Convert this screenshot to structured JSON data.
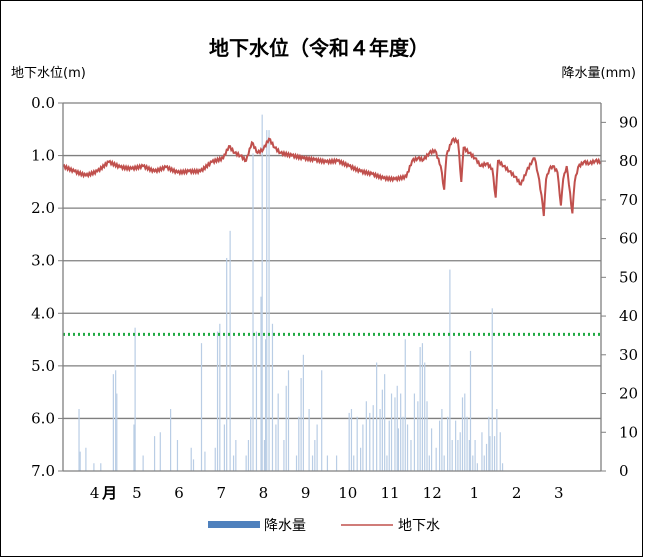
{
  "chart_data": {
    "type": "line+bar",
    "title": "地下水位（令和４年度）",
    "y_left_label": "地下水位(m)",
    "y_right_label": "降水量(mm)",
    "y_left_ticks": [
      "0.0",
      "1.0",
      "2.0",
      "3.0",
      "4.0",
      "5.0",
      "6.0",
      "7.0"
    ],
    "y_left_range": [
      0,
      7
    ],
    "y_left_inverted": true,
    "y_right_ticks": [
      "0",
      "10",
      "20",
      "30",
      "40",
      "50",
      "60",
      "70",
      "80",
      "90"
    ],
    "y_right_range": [
      0,
      95
    ],
    "x_ticks": [
      "4",
      "5",
      "6",
      "7",
      "8",
      "9",
      "10",
      "11",
      "12",
      "1",
      "2",
      "3"
    ],
    "x_month_suffix": "月",
    "reference_line_level": 4.4,
    "reference_line_color": "#22aa44",
    "series": [
      {
        "name": "降水量",
        "type": "bar",
        "color": "#4f81bd",
        "bar_color": "#b9cde5",
        "unit": "mm",
        "day_values": [
          [
            14,
            16
          ],
          [
            15,
            5
          ],
          [
            20,
            6
          ],
          [
            27,
            2
          ],
          [
            33,
            2
          ],
          [
            44,
            25
          ],
          [
            46,
            26
          ],
          [
            47,
            20
          ],
          [
            62,
            12
          ],
          [
            63,
            37
          ],
          [
            70,
            4
          ],
          [
            80,
            9
          ],
          [
            85,
            10
          ],
          [
            94,
            16
          ],
          [
            100,
            8
          ],
          [
            112,
            6
          ],
          [
            114,
            3
          ],
          [
            121,
            33
          ],
          [
            124,
            5
          ],
          [
            133,
            6
          ],
          [
            135,
            36
          ],
          [
            137,
            38
          ],
          [
            141,
            12
          ],
          [
            143,
            55
          ],
          [
            146,
            62
          ],
          [
            149,
            4
          ],
          [
            151,
            8
          ],
          [
            160,
            4
          ],
          [
            162,
            8
          ],
          [
            164,
            14
          ],
          [
            166,
            82
          ],
          [
            169,
            36
          ],
          [
            173,
            45
          ],
          [
            174,
            92
          ],
          [
            176,
            8
          ],
          [
            177,
            34
          ],
          [
            178,
            88
          ],
          [
            180,
            88
          ],
          [
            183,
            38
          ],
          [
            186,
            12
          ],
          [
            188,
            20
          ],
          [
            193,
            8
          ],
          [
            195,
            22
          ],
          [
            197,
            26
          ],
          [
            204,
            4
          ],
          [
            206,
            14
          ],
          [
            208,
            24
          ],
          [
            210,
            30
          ],
          [
            215,
            16
          ],
          [
            218,
            4
          ],
          [
            220,
            8
          ],
          [
            222,
            12
          ],
          [
            226,
            26
          ],
          [
            231,
            4
          ],
          [
            239,
            4
          ],
          [
            250,
            15
          ],
          [
            252,
            16
          ],
          [
            254,
            4
          ],
          [
            257,
            14
          ],
          [
            260,
            6
          ],
          [
            262,
            12
          ],
          [
            265,
            18
          ],
          [
            268,
            15
          ],
          [
            271,
            17
          ],
          [
            274,
            28
          ],
          [
            277,
            16
          ],
          [
            279,
            21
          ],
          [
            281,
            25
          ],
          [
            283,
            4
          ],
          [
            285,
            13
          ],
          [
            287,
            20
          ],
          [
            290,
            19
          ],
          [
            292,
            22
          ],
          [
            293,
            11
          ],
          [
            295,
            20
          ],
          [
            297,
            14
          ],
          [
            299,
            34
          ],
          [
            301,
            12
          ],
          [
            304,
            8
          ],
          [
            307,
            20
          ],
          [
            310,
            18
          ],
          [
            312,
            32
          ],
          [
            314,
            33
          ],
          [
            316,
            28
          ],
          [
            318,
            18
          ],
          [
            320,
            4
          ],
          [
            322,
            11
          ],
          [
            326,
            6
          ],
          [
            329,
            13
          ],
          [
            331,
            16
          ],
          [
            333,
            4
          ],
          [
            336,
            14
          ],
          [
            338,
            52
          ],
          [
            340,
            8
          ],
          [
            343,
            13
          ],
          [
            345,
            8
          ],
          [
            347,
            10
          ],
          [
            349,
            19
          ],
          [
            351,
            20
          ],
          [
            353,
            14
          ],
          [
            355,
            8
          ],
          [
            356,
            31
          ],
          [
            358,
            4
          ],
          [
            360,
            8
          ],
          [
            362,
            2
          ],
          [
            366,
            10
          ],
          [
            368,
            4
          ],
          [
            370,
            7
          ],
          [
            372,
            14
          ],
          [
            373,
            9
          ],
          [
            375,
            42
          ],
          [
            377,
            9
          ],
          [
            379,
            16
          ],
          [
            382,
            10
          ],
          [
            384,
            2
          ]
        ]
      },
      {
        "name": "地下水",
        "type": "line",
        "color": "#c0504d",
        "unit": "m",
        "day_values": [
          [
            0,
            1.2
          ],
          [
            10,
            1.3
          ],
          [
            20,
            1.38
          ],
          [
            30,
            1.3
          ],
          [
            40,
            1.12
          ],
          [
            50,
            1.22
          ],
          [
            60,
            1.25
          ],
          [
            70,
            1.2
          ],
          [
            80,
            1.3
          ],
          [
            90,
            1.22
          ],
          [
            100,
            1.32
          ],
          [
            110,
            1.3
          ],
          [
            120,
            1.3
          ],
          [
            130,
            1.12
          ],
          [
            140,
            1.05
          ],
          [
            145,
            0.82
          ],
          [
            150,
            0.95
          ],
          [
            155,
            1.0
          ],
          [
            160,
            1.1
          ],
          [
            165,
            0.75
          ],
          [
            170,
            0.95
          ],
          [
            175,
            0.88
          ],
          [
            180,
            0.68
          ],
          [
            185,
            0.85
          ],
          [
            190,
            0.95
          ],
          [
            200,
            1.0
          ],
          [
            210,
            1.05
          ],
          [
            220,
            1.08
          ],
          [
            230,
            1.12
          ],
          [
            240,
            1.1
          ],
          [
            250,
            1.2
          ],
          [
            260,
            1.3
          ],
          [
            270,
            1.35
          ],
          [
            280,
            1.43
          ],
          [
            290,
            1.45
          ],
          [
            300,
            1.4
          ],
          [
            305,
            1.1
          ],
          [
            310,
            1.05
          ],
          [
            315,
            1.08
          ],
          [
            320,
            0.95
          ],
          [
            325,
            0.9
          ],
          [
            330,
            1.2
          ],
          [
            333,
            1.65
          ],
          [
            335,
            1.0
          ],
          [
            340,
            0.7
          ],
          [
            345,
            0.72
          ],
          [
            348,
            1.5
          ],
          [
            350,
            0.85
          ],
          [
            355,
            0.95
          ],
          [
            360,
            1.05
          ],
          [
            365,
            1.2
          ],
          [
            370,
            1.15
          ],
          [
            375,
            1.25
          ],
          [
            378,
            1.8
          ],
          [
            380,
            1.1
          ],
          [
            385,
            1.2
          ],
          [
            390,
            1.3
          ],
          [
            395,
            1.4
          ],
          [
            400,
            1.55
          ],
          [
            405,
            1.3
          ],
          [
            410,
            1.1
          ],
          [
            412,
            1.05
          ],
          [
            415,
            1.35
          ],
          [
            418,
            1.75
          ],
          [
            420,
            2.15
          ],
          [
            422,
            1.45
          ],
          [
            425,
            1.25
          ],
          [
            428,
            1.2
          ],
          [
            432,
            1.32
          ],
          [
            435,
            1.95
          ],
          [
            437,
            1.45
          ],
          [
            440,
            1.2
          ],
          [
            442,
            1.55
          ],
          [
            445,
            2.1
          ],
          [
            447,
            1.5
          ],
          [
            450,
            1.22
          ],
          [
            455,
            1.12
          ],
          [
            460,
            1.15
          ],
          [
            465,
            1.1
          ],
          [
            470,
            1.12
          ]
        ]
      }
    ],
    "legend": [
      "降水量",
      "地下水"
    ]
  }
}
